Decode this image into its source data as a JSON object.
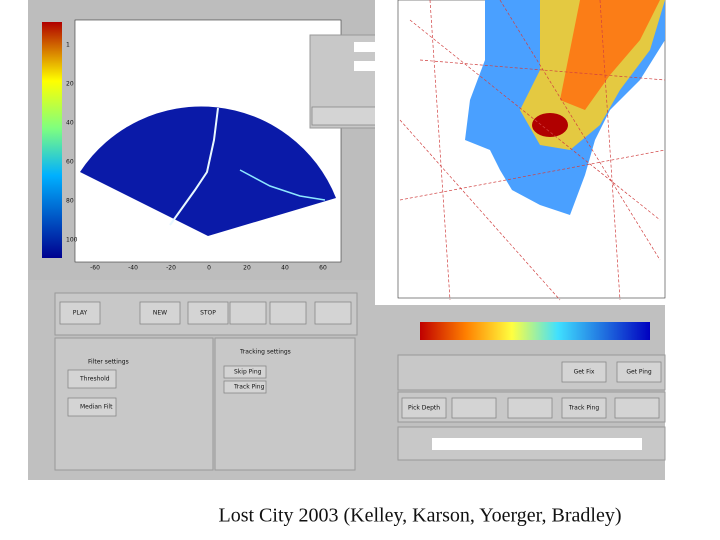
{
  "caption": "Lost City 2003 (Kelley, Karson, Yoerger, Bradley)",
  "sonar": {
    "x_ticks": [
      "-60",
      "-40",
      "-20",
      "0",
      "20",
      "40",
      "60"
    ],
    "colorbar_ticks": [
      "1",
      "20",
      "40",
      "60",
      "80",
      "100"
    ]
  },
  "playback": {
    "buttons": [
      "PLAY",
      "NEW",
      "STOP"
    ]
  },
  "filter": {
    "title": "Filter settings",
    "options": [
      "Threshold",
      "Median Filt"
    ]
  },
  "tracking": {
    "title": "Tracking settings",
    "options": [
      "Skip Ping",
      "Track Ping"
    ]
  },
  "controls": {
    "buttons": [
      "Get Fix",
      "Get Ping",
      "Pick Depth",
      "Track Ping"
    ]
  }
}
